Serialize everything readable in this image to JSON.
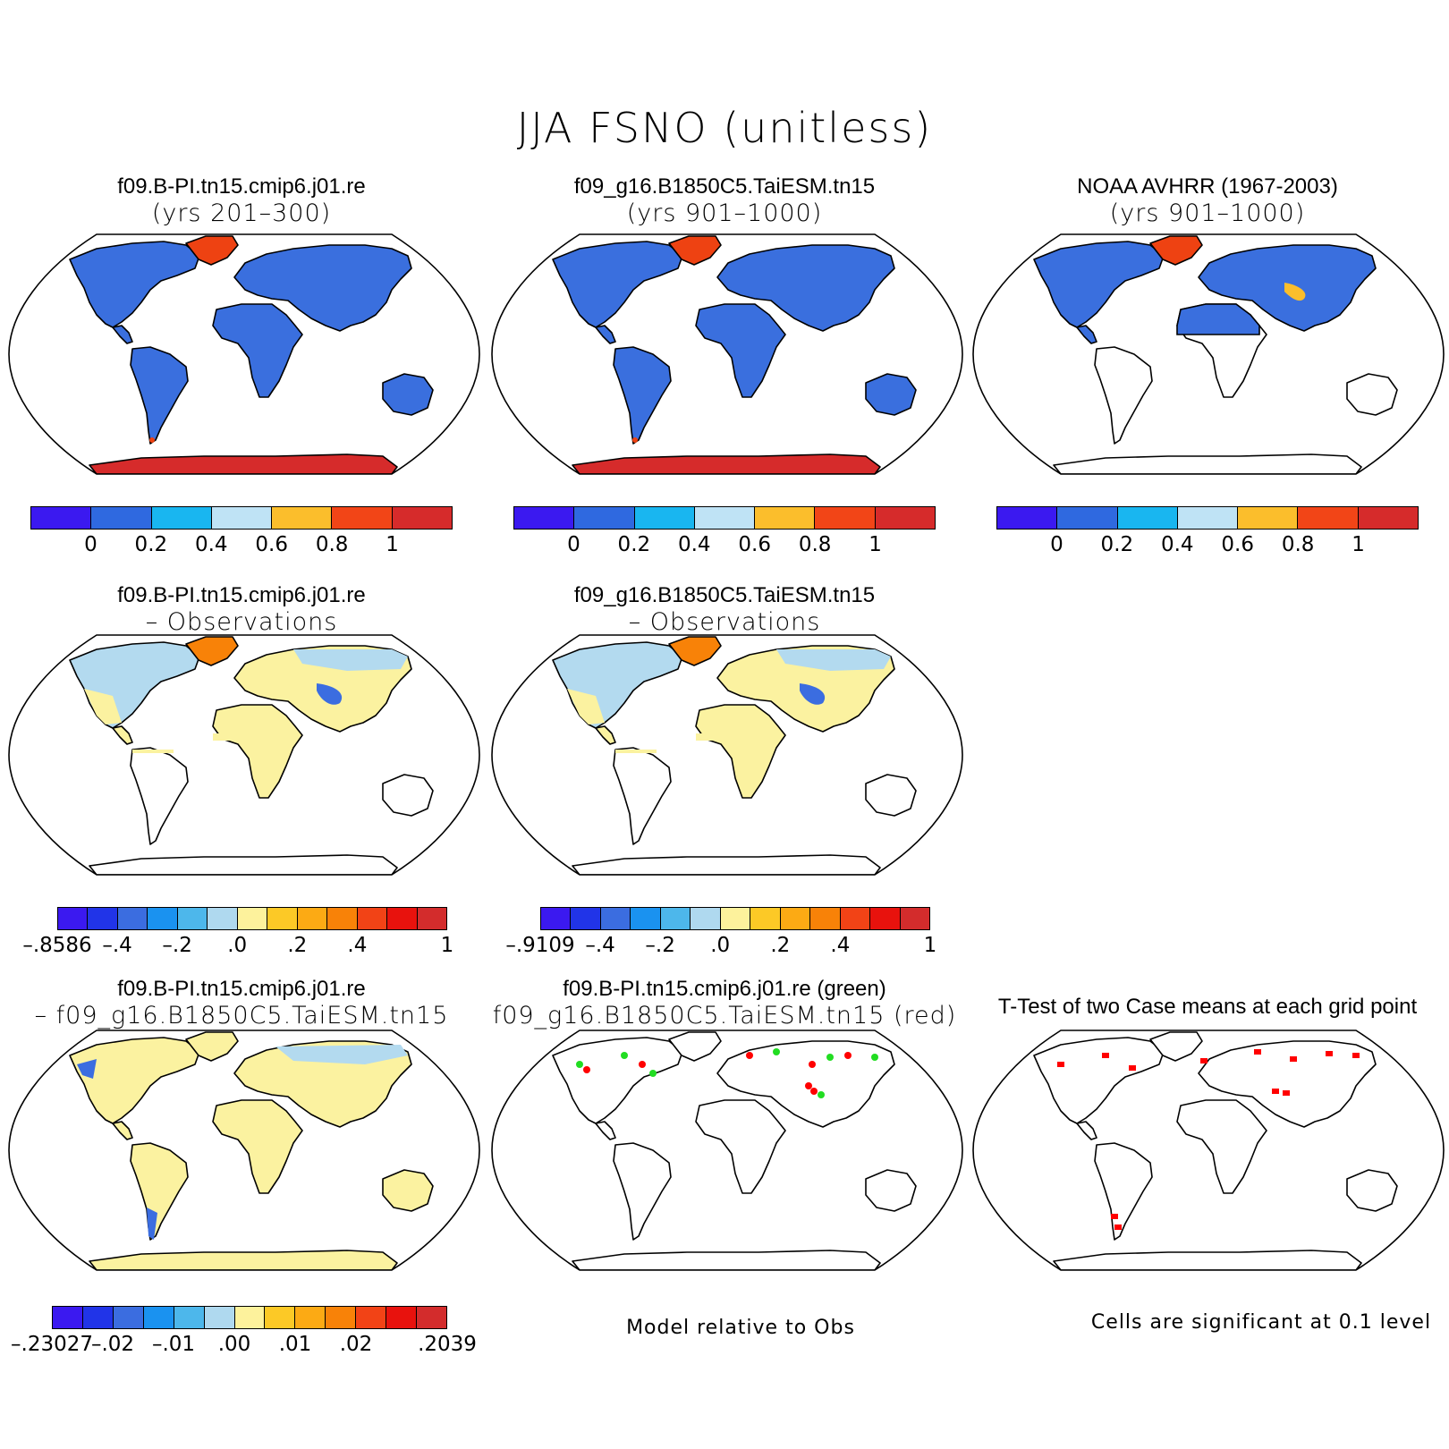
{
  "title": "JJA FSNO (unitless)",
  "panels": [
    {
      "line1": "f09.B-PI.tn15.cmip6.j01.re",
      "line2": "(yrs 201–300)"
    },
    {
      "line1": "f09_g16.B1850C5.TaiESM.tn15",
      "line2": "(yrs 901–1000)"
    },
    {
      "line1": "NOAA AVHRR (1967-2003)",
      "line2": "(yrs 901–1000)"
    },
    {
      "line1": "f09.B-PI.tn15.cmip6.j01.re",
      "line2": "– Observations"
    },
    {
      "line1": "f09_g16.B1850C5.TaiESM.tn15",
      "line2": "– Observations"
    },
    {
      "line1": "f09.B-PI.tn15.cmip6.j01.re",
      "line2": "– f09_g16.B1850C5.TaiESM.tn15"
    },
    {
      "line1": "f09.B-PI.tn15.cmip6.j01.re (green)",
      "line2": "f09_g16.B1850C5.TaiESM.tn15 (red)"
    },
    {
      "line1": "T-Test of two Case means at each grid point",
      "line2": ""
    }
  ],
  "colorbars": {
    "row1": {
      "colors": [
        "#3b19f0",
        "#2f69e0",
        "#19b6f0",
        "#bfe3f5",
        "#fbbe2c",
        "#f24517",
        "#d62b2b"
      ],
      "ticks": [
        "0",
        "0.2",
        "0.4",
        "0.6",
        "0.8",
        "1"
      ]
    },
    "case1_obs": {
      "colors": [
        "#3b19f0",
        "#2134e8",
        "#3b6de0",
        "#1a92f0",
        "#4db7eb",
        "#afd9ef",
        "#fdf29c",
        "#fcc926",
        "#fcaa14",
        "#f88208",
        "#f24316",
        "#e8120d",
        "#d32c2c"
      ],
      "ticks": [
        "–.8586",
        "–.4",
        "–.2",
        ".0",
        ".2",
        ".4",
        "1"
      ]
    },
    "case2_obs": {
      "colors": [
        "#3b19f0",
        "#2134e8",
        "#3b6de0",
        "#1a92f0",
        "#4db7eb",
        "#afd9ef",
        "#fdf29c",
        "#fcc926",
        "#fcaa14",
        "#f88208",
        "#f24316",
        "#e8120d",
        "#d32c2c"
      ],
      "ticks": [
        "–.9109",
        "–.4",
        "–.2",
        ".0",
        ".2",
        ".4",
        "1"
      ]
    },
    "diff": {
      "colors": [
        "#3b19f0",
        "#2134e8",
        "#3b6de0",
        "#1a92f0",
        "#4db7eb",
        "#afd9ef",
        "#fdf29c",
        "#fcc926",
        "#fcaa14",
        "#f88208",
        "#f24316",
        "#e8120d",
        "#d32c2c"
      ],
      "ticks": [
        "–.23027",
        "–.02",
        "–.01",
        ".00",
        ".01",
        ".02",
        ".2039"
      ]
    }
  },
  "notes": {
    "model_relative": "Model relative to Obs",
    "significance": "Cells are significant at 0.1 level"
  },
  "fill_colors": {
    "snow_low": "#3a6fde",
    "snow_high": "#d62b2b",
    "greenland": "#ee4212",
    "diff_near_zero": "#fbf2a0",
    "diff_light_blue": "#b3daef",
    "diff_blue": "#3b6de0",
    "sig_red": "#ff0000",
    "sig_green": "#22dd22"
  }
}
